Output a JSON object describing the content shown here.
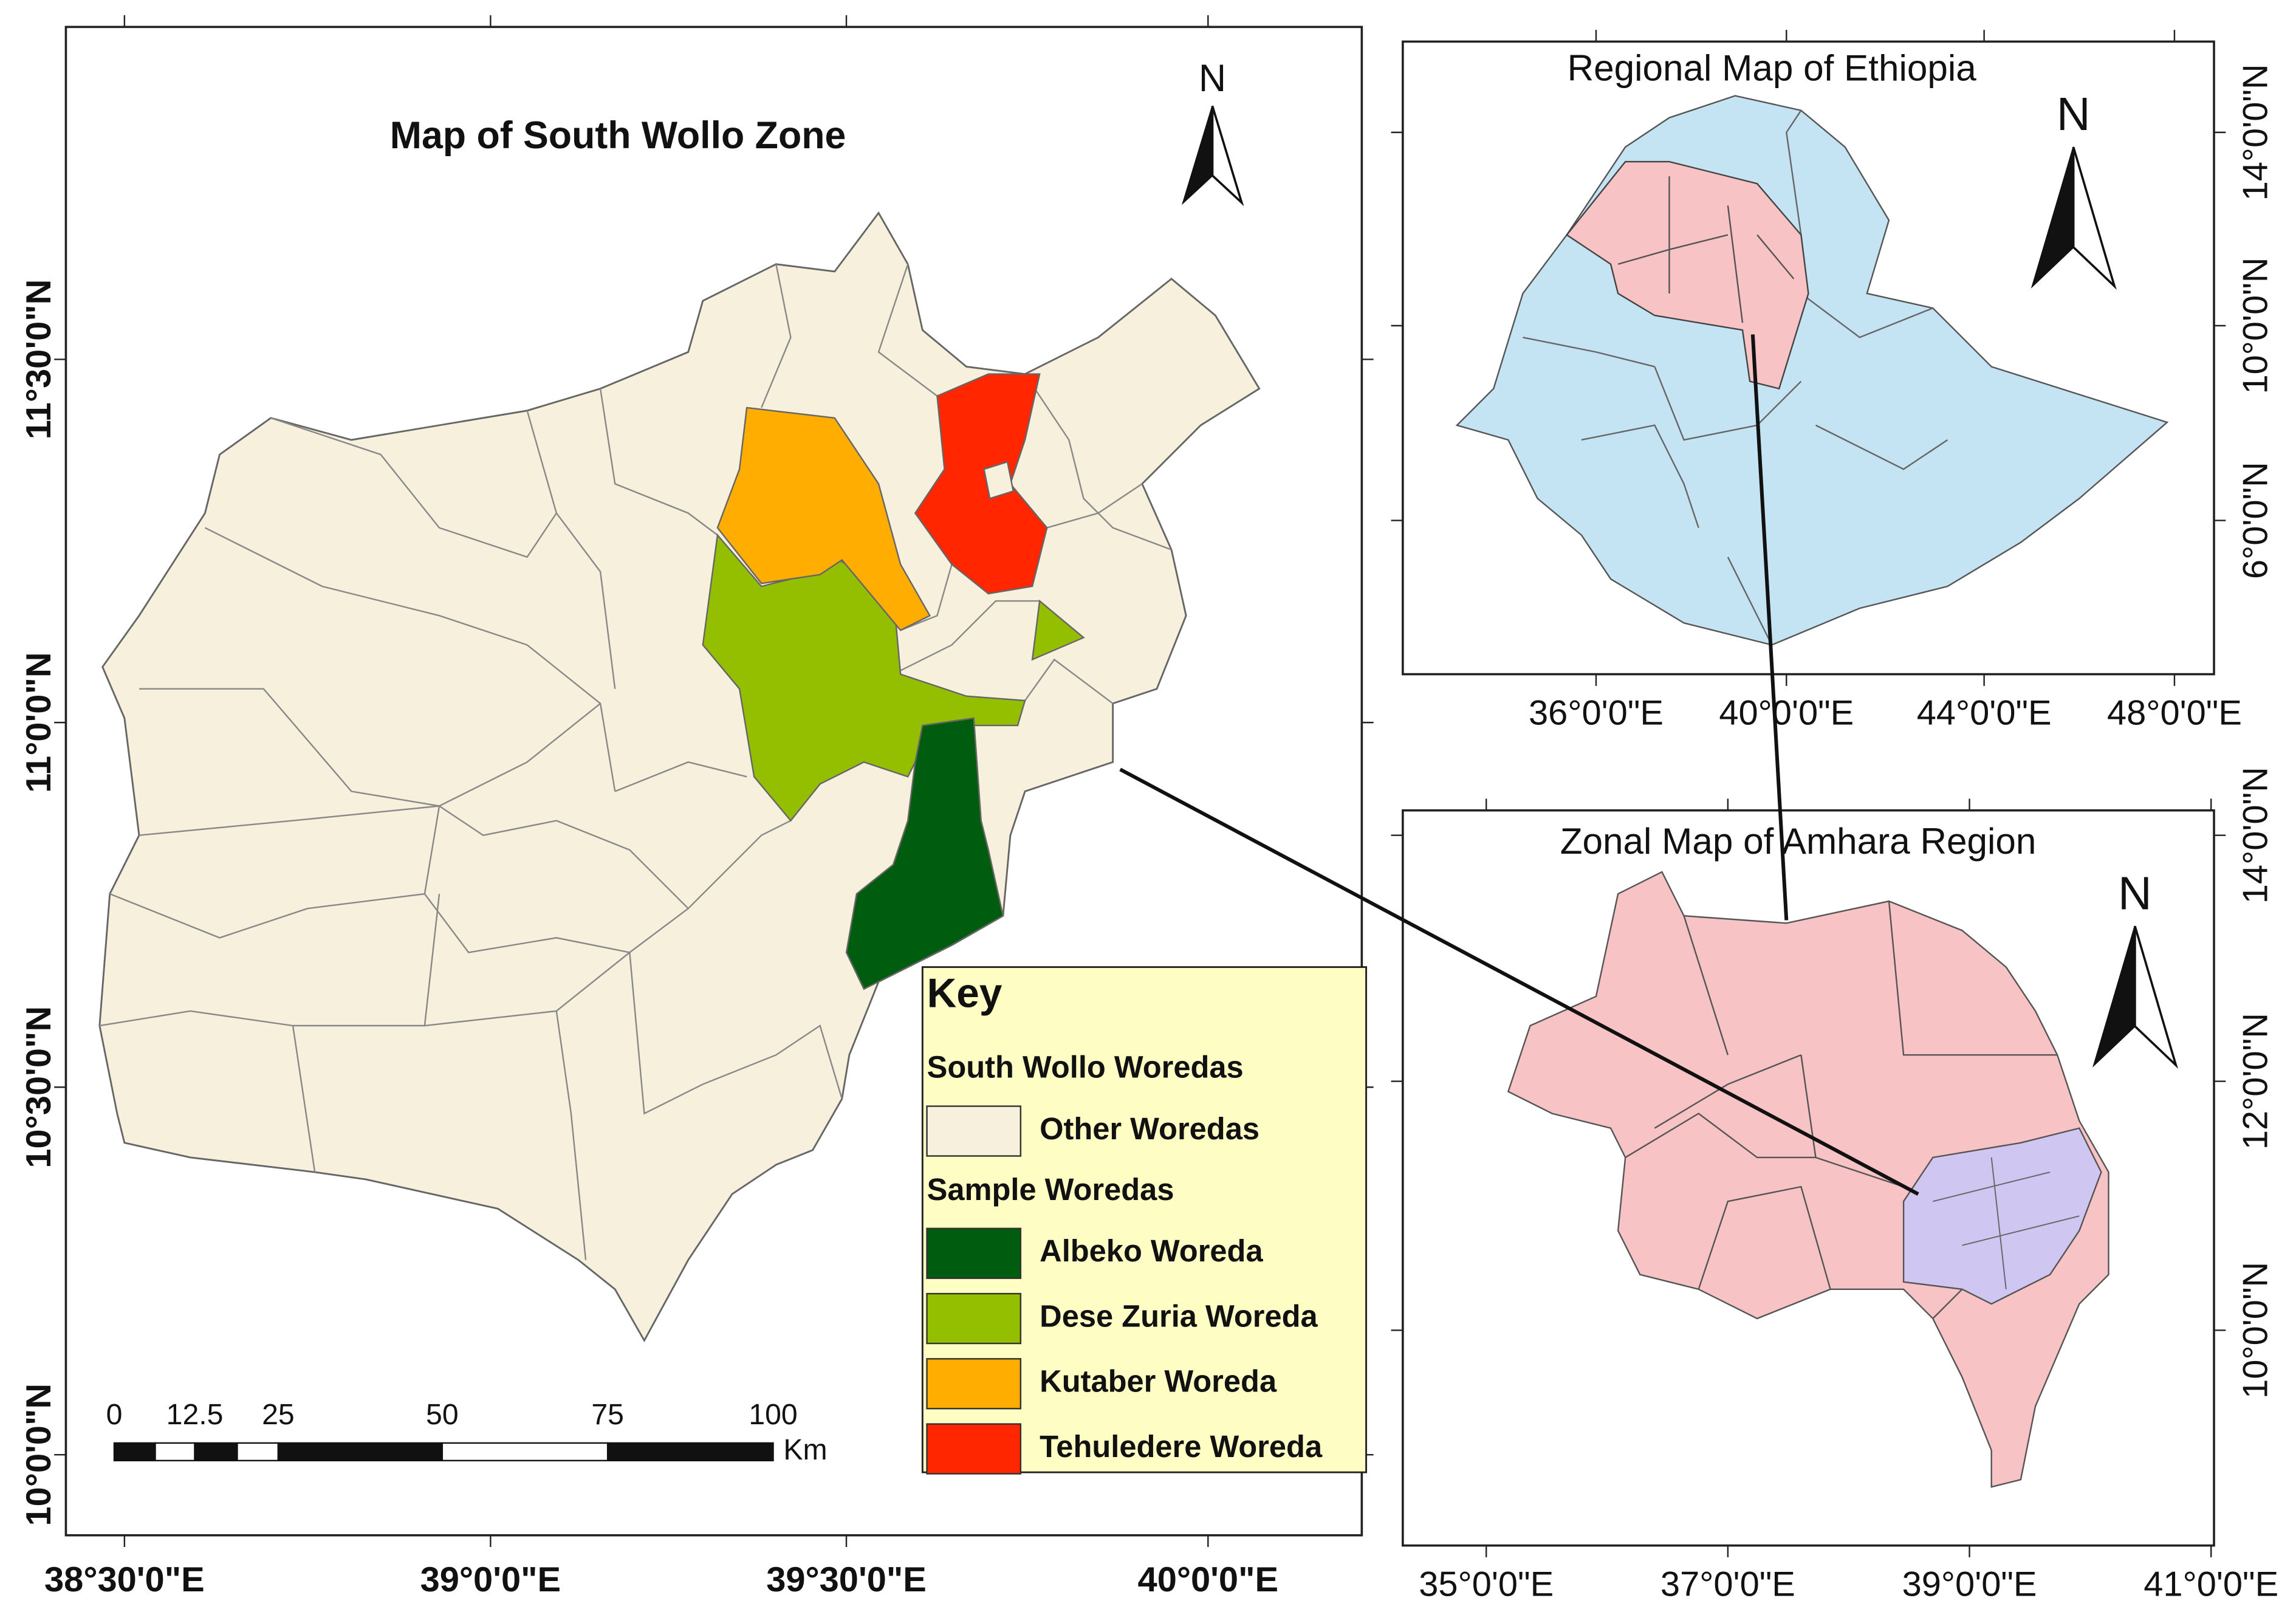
{
  "main_map": {
    "title": "Map of South Wollo Zone",
    "north": "N",
    "lat_labels": [
      "11°30'0\"N",
      "11°0'0\"N",
      "10°30'0\"N",
      "10°0'0\"N"
    ],
    "lon_labels": [
      "38°30'0\"E",
      "39°0'0\"E",
      "39°30'0\"E",
      "40°0'0\"E"
    ],
    "scale_bar": {
      "labels": [
        0,
        12.5,
        25,
        50,
        75,
        100
      ],
      "unit": "Km"
    },
    "key": {
      "title": "Key",
      "groups": [
        {
          "heading": "South Wollo Woredas",
          "items": [
            {
              "label": "Other Woredas",
              "color": "#f6f0dc"
            }
          ]
        },
        {
          "heading": "Sample Woredas",
          "items": [
            {
              "label": "Albeko Woreda",
              "color": "#005c0e"
            },
            {
              "label": "Dese Zuria Woreda",
              "color": "#94be00"
            },
            {
              "label": "Kutaber Woreda",
              "color": "#ffad00"
            },
            {
              "label": "Tehuledere Woreda",
              "color": "#ff2600"
            }
          ]
        }
      ]
    }
  },
  "regional_map": {
    "title": "Regional Map of Ethiopia",
    "north": "N",
    "color": "#c4e4f3",
    "highlight_color": "#f8c3c5",
    "lat_labels": [
      "14°0'0\"N",
      "10°0'0\"N",
      "6°0'0\"N"
    ],
    "lon_labels": [
      "36°0'0\"E",
      "40°0'0\"E",
      "44°0'0\"E",
      "48°0'0\"E"
    ]
  },
  "zonal_map": {
    "title": "Zonal Map of Amhara Region",
    "north": "N",
    "color": "#f8c3c5",
    "highlight_color": "#cfc6f1",
    "lat_labels": [
      "14°0'0\"N",
      "12°0'0\"N",
      "10°0'0\"N"
    ],
    "lon_labels": [
      "35°0'0\"E",
      "37°0'0\"E",
      "39°0'0\"E",
      "41°0'0\"E"
    ]
  }
}
